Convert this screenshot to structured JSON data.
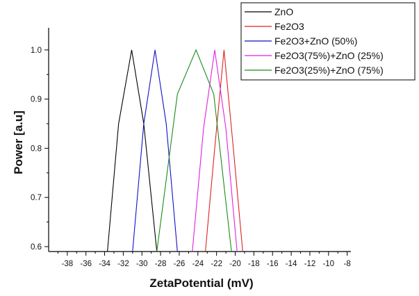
{
  "chart_data": {
    "type": "line",
    "title": "",
    "xlabel": "ZetaPotential (mV)",
    "ylabel": "Power [a.u]",
    "xlim": [
      -40,
      -7.6
    ],
    "ylim": [
      0.59,
      1.045
    ],
    "x_ticks": [
      -38,
      -36,
      -34,
      -32,
      -30,
      -28,
      -26,
      -24,
      -22,
      -20,
      -18,
      -16,
      -14,
      -12,
      -10,
      -8
    ],
    "y_ticks": [
      0.6,
      0.7,
      0.8,
      0.9,
      1.0
    ],
    "y_tick_labels": [
      "0.6",
      "0.7",
      "0.8",
      "0.9",
      "1.0"
    ],
    "grid": false,
    "legend_position": "top-right",
    "series": [
      {
        "name": "ZnO",
        "color": "#000000",
        "x": [
          -33.7,
          -32.5,
          -31.1,
          -29.8,
          -28.4
        ],
        "y": [
          0.59,
          0.85,
          1.0,
          0.85,
          0.59
        ]
      },
      {
        "name": "Fe2O3",
        "color": "#e02020",
        "x": [
          -23.2,
          -22.2,
          -21.2,
          -20.2,
          -19.2
        ],
        "y": [
          0.59,
          0.8,
          1.0,
          0.8,
          0.59
        ]
      },
      {
        "name": "Fe2O3+ZnO (50%)",
        "color": "#1010c8",
        "x": [
          -31.0,
          -29.8,
          -28.6,
          -27.4,
          -26.2
        ],
        "y": [
          0.59,
          0.85,
          1.0,
          0.85,
          0.59
        ]
      },
      {
        "name": "Fe2O3(75%)+ZnO (25%)",
        "color": "#e020e0",
        "x": [
          -24.6,
          -23.4,
          -22.2,
          -21.0,
          -19.8
        ],
        "y": [
          0.59,
          0.84,
          1.0,
          0.84,
          0.59
        ]
      },
      {
        "name": "Fe2O3(25%)+ZnO (75%)",
        "color": "#1a8a1a",
        "x": [
          -28.4,
          -26.2,
          -24.2,
          -22.3,
          -20.4
        ],
        "y": [
          0.59,
          0.91,
          1.0,
          0.91,
          0.59
        ]
      }
    ]
  }
}
